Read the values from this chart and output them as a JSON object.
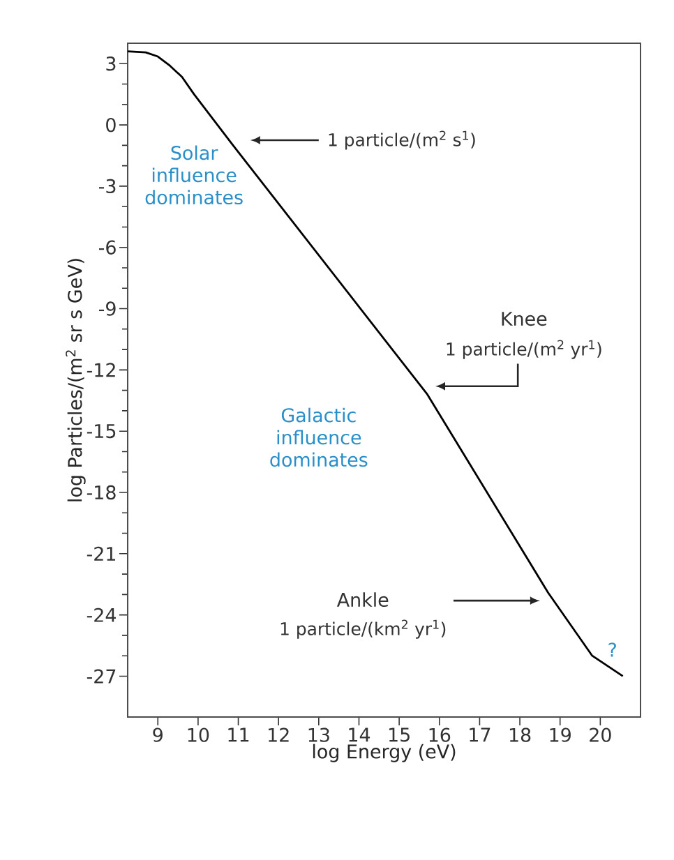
{
  "chart_data": {
    "type": "line",
    "xlabel": "log Energy (eV)",
    "ylabel": "log Particles/(m$^{2}$ sr s GeV)",
    "x": [
      8.25,
      8.7,
      9.0,
      9.3,
      9.6,
      9.9,
      10.87,
      15.7,
      18.7,
      19.8,
      20.56
    ],
    "series": [
      {
        "color": "#000000",
        "values": [
          3.6,
          3.55,
          3.35,
          2.9,
          2.35,
          1.5,
          -1,
          -13.2,
          -22.9,
          -26,
          -27
        ]
      }
    ],
    "xlim": [
      8.25,
      21
    ],
    "ylim": [
      -29,
      4
    ],
    "xticks": [
      9,
      10,
      11,
      12,
      13,
      14,
      15,
      16,
      17,
      18,
      19,
      20
    ],
    "yticks": [
      3,
      0,
      -3,
      -6,
      -9,
      -12,
      -15,
      -18,
      -21,
      -24,
      -27
    ],
    "grid": false,
    "marker": "none",
    "line_style": "solid",
    "annotations": [
      "Solar influence dominates",
      "Galactic influence dominates",
      "1 particle/(m$^{2}$ s$^{1}$)",
      "Knee",
      "1 particle/(m$^{2}$ yr$^{1}$)",
      "Ankle",
      "1 particle/(km$^{2}$ yr$^{1}$)",
      "?"
    ]
  }
}
